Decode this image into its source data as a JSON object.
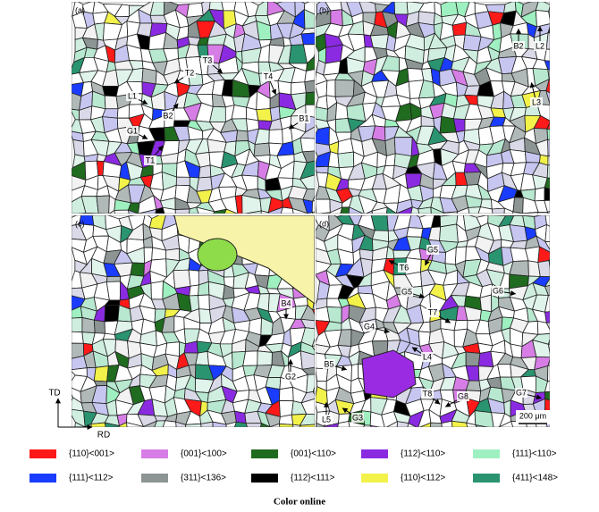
{
  "panels": [
    {
      "label": "(a)",
      "annotations": [
        "T3",
        "T2",
        "T4",
        "L1",
        "B2",
        "B1",
        "G1",
        "T1"
      ]
    },
    {
      "label": "(b)",
      "annotations": [
        "B2",
        "L2",
        "L3"
      ]
    },
    {
      "label": "(c)",
      "annotations": [
        "B4",
        "G2"
      ]
    },
    {
      "label": "(d)",
      "annotations": [
        "G5",
        "T6",
        "G5",
        "G6",
        "T7",
        "G4",
        "L4",
        "B5",
        "T8",
        "G8",
        "G7",
        "L5",
        "G3"
      ]
    }
  ],
  "axes": {
    "vertical": "TD",
    "horizontal": "RD"
  },
  "scale_bar": "200 μm",
  "legend": [
    {
      "label": "{110}<001>",
      "color": "#ff1a1a"
    },
    {
      "label": "{001}<100>",
      "color": "#d77ee6"
    },
    {
      "label": "{001}<110>",
      "color": "#1f6b1f"
    },
    {
      "label": "{112}<110>",
      "color": "#8a2be2"
    },
    {
      "label": "{111}<110>",
      "color": "#9ff0c0"
    },
    {
      "label": "{111}<112>",
      "color": "#1a3cff"
    },
    {
      "label": "{311}<136>",
      "color": "#8c9494"
    },
    {
      "label": "{112}<111>",
      "color": "#000000"
    },
    {
      "label": "{110}<112>",
      "color": "#f2f24a"
    },
    {
      "label": "{411}<148>",
      "color": "#2a9470"
    }
  ],
  "caption": "Color online"
}
